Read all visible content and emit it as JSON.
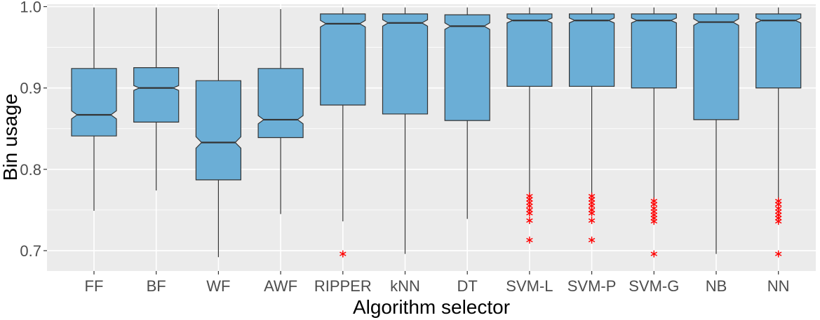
{
  "chart_data": {
    "type": "boxplot",
    "notched": true,
    "xlabel": "Algorithm selector",
    "ylabel": "Bin usage",
    "ylim": [
      0.675,
      1.003
    ],
    "yticks": [
      0.7,
      0.8,
      0.9,
      1.0
    ],
    "ytick_labels": [
      "0.7",
      "0.8",
      "0.9",
      "1.0"
    ],
    "grid": true,
    "colors": {
      "panel": "#ebebeb",
      "grid": "#ffffff",
      "box_fill": "#6baed6",
      "box_line": "#333333",
      "outlier": "#ff0000",
      "tick_text": "#4d4d4d"
    },
    "categories": [
      "FF",
      "BF",
      "WF",
      "AWF",
      "RIPPER",
      "kNN",
      "DT",
      "SVM-L",
      "SVM-P",
      "SVM-G",
      "NB",
      "NN"
    ],
    "boxes": [
      {
        "label": "FF",
        "whisker_low": 0.749,
        "q1": 0.841,
        "median": 0.867,
        "q3": 0.924,
        "whisker_high": 0.999,
        "notch": [
          0.862,
          0.872
        ],
        "outliers": []
      },
      {
        "label": "BF",
        "whisker_low": 0.774,
        "q1": 0.858,
        "median": 0.9,
        "q3": 0.925,
        "whisker_high": 0.999,
        "notch": [
          0.897,
          0.903
        ],
        "outliers": []
      },
      {
        "label": "WF",
        "whisker_low": 0.692,
        "q1": 0.787,
        "median": 0.833,
        "q3": 0.909,
        "whisker_high": 0.997,
        "notch": [
          0.826,
          0.84
        ],
        "outliers": []
      },
      {
        "label": "AWF",
        "whisker_low": 0.745,
        "q1": 0.839,
        "median": 0.861,
        "q3": 0.924,
        "whisker_high": 0.997,
        "notch": [
          0.856,
          0.866
        ],
        "outliers": []
      },
      {
        "label": "RIPPER",
        "whisker_low": 0.736,
        "q1": 0.879,
        "median": 0.979,
        "q3": 0.991,
        "whisker_high": 0.999,
        "notch": [
          0.975,
          0.983
        ],
        "outliers": [
          0.696
        ]
      },
      {
        "label": "kNN",
        "whisker_low": 0.696,
        "q1": 0.868,
        "median": 0.98,
        "q3": 0.991,
        "whisker_high": 0.999,
        "notch": [
          0.976,
          0.984
        ],
        "outliers": []
      },
      {
        "label": "DT",
        "whisker_low": 0.739,
        "q1": 0.86,
        "median": 0.976,
        "q3": 0.99,
        "whisker_high": 0.999,
        "notch": [
          0.972,
          0.98
        ],
        "outliers": []
      },
      {
        "label": "SVM-L",
        "whisker_low": 0.767,
        "q1": 0.902,
        "median": 0.983,
        "q3": 0.991,
        "whisker_high": 0.999,
        "notch": [
          0.98,
          0.986
        ],
        "outliers": [
          0.767,
          0.763,
          0.759,
          0.755,
          0.75,
          0.746,
          0.737,
          0.713
        ]
      },
      {
        "label": "SVM-P",
        "whisker_low": 0.767,
        "q1": 0.902,
        "median": 0.983,
        "q3": 0.991,
        "whisker_high": 0.999,
        "notch": [
          0.98,
          0.986
        ],
        "outliers": [
          0.767,
          0.763,
          0.759,
          0.755,
          0.75,
          0.746,
          0.737,
          0.713
        ]
      },
      {
        "label": "SVM-G",
        "whisker_low": 0.761,
        "q1": 0.9,
        "median": 0.983,
        "q3": 0.991,
        "whisker_high": 0.999,
        "notch": [
          0.98,
          0.986
        ],
        "outliers": [
          0.761,
          0.757,
          0.752,
          0.748,
          0.744,
          0.74,
          0.736,
          0.696
        ]
      },
      {
        "label": "NB",
        "whisker_low": 0.696,
        "q1": 0.861,
        "median": 0.981,
        "q3": 0.991,
        "whisker_high": 0.999,
        "notch": [
          0.977,
          0.985
        ],
        "outliers": []
      },
      {
        "label": "NN",
        "whisker_low": 0.761,
        "q1": 0.9,
        "median": 0.983,
        "q3": 0.991,
        "whisker_high": 0.999,
        "notch": [
          0.98,
          0.986
        ],
        "outliers": [
          0.761,
          0.757,
          0.752,
          0.748,
          0.744,
          0.74,
          0.736,
          0.696
        ]
      }
    ]
  }
}
